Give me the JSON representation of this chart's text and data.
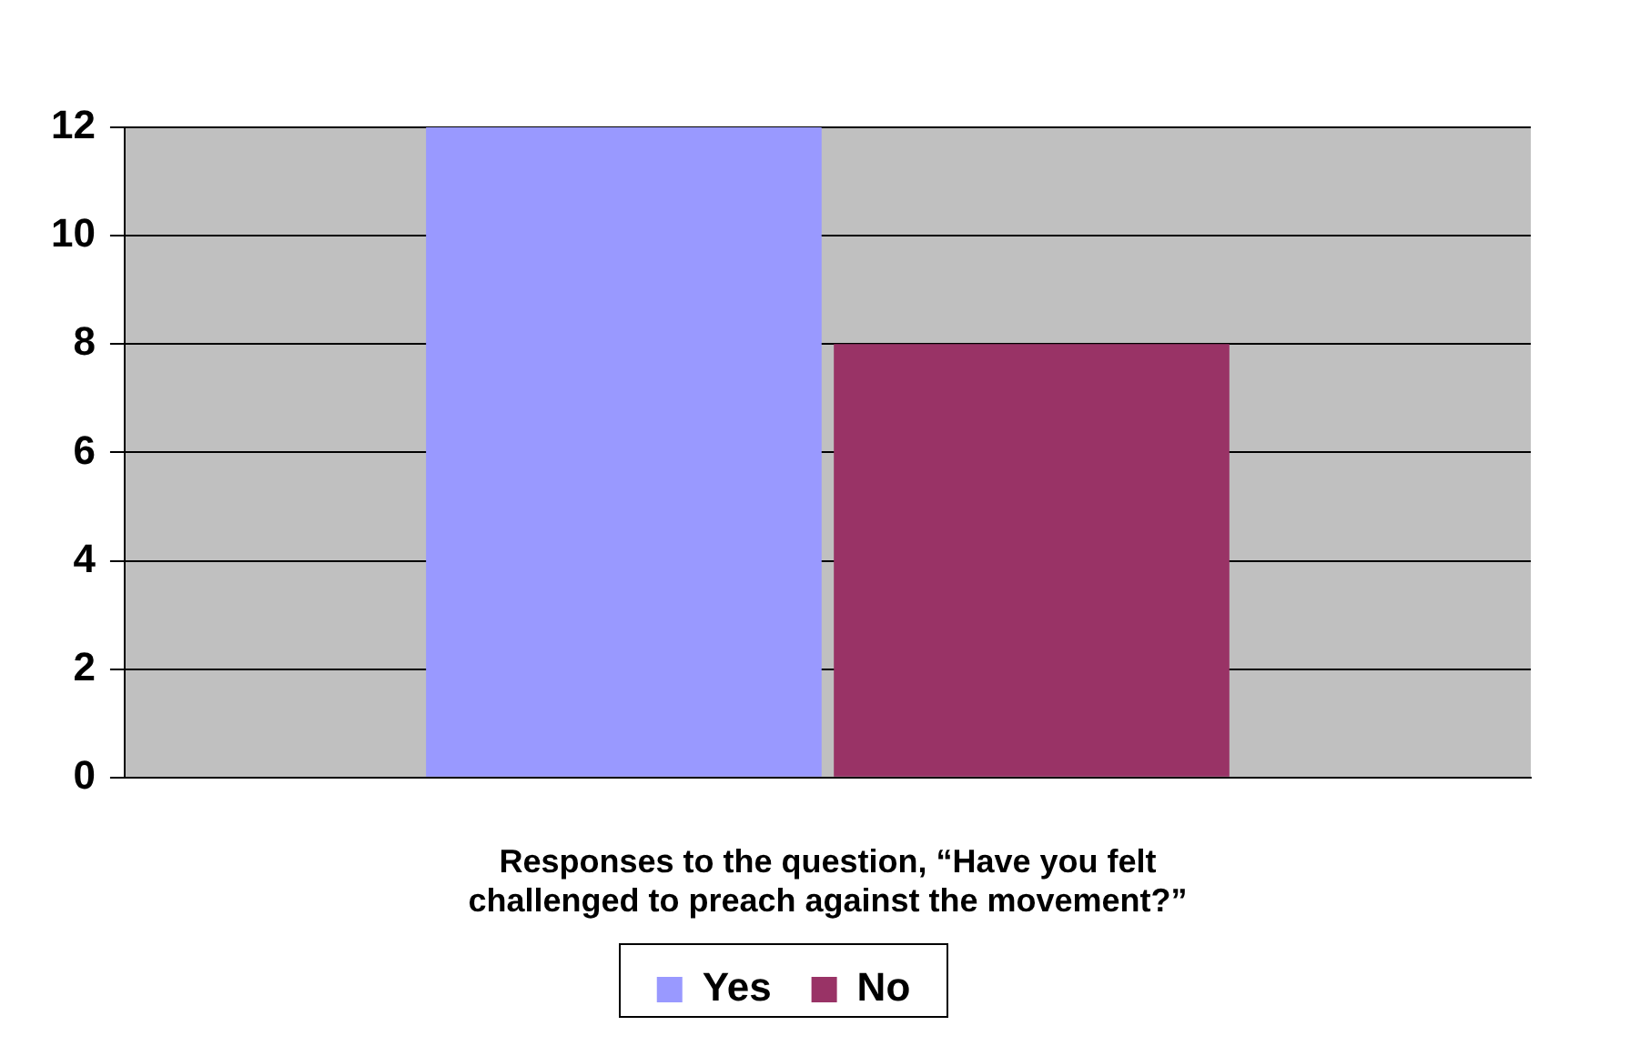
{
  "chart_data": {
    "type": "bar",
    "xlabel": "Responses to the question, “Have you felt challenged to preach against the movement?”",
    "categories": [
      null
    ],
    "series": [
      {
        "name": "Yes",
        "color": "#9999ff",
        "values": [
          12
        ]
      },
      {
        "name": "No",
        "color": "#993366",
        "values": [
          8
        ]
      }
    ],
    "ylim": [
      0,
      12
    ],
    "yticks": [
      0,
      2,
      4,
      6,
      8,
      10,
      12
    ],
    "grid": "y",
    "legend": "bottom"
  }
}
